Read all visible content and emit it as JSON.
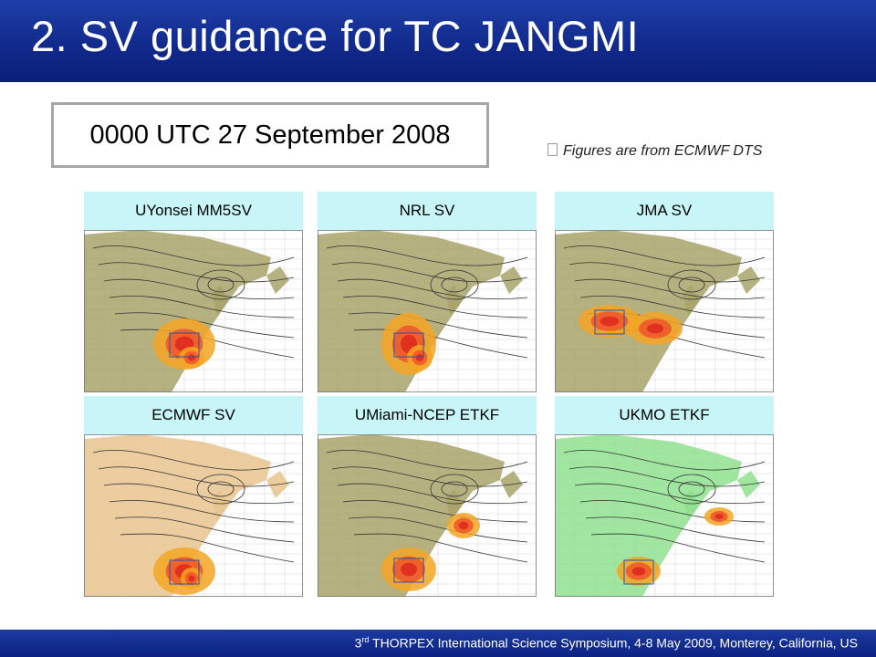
{
  "slide": {
    "title": "2. SV guidance for TC JANGMI",
    "date_box": "0000 UTC 27 September 2008",
    "note": "Figures are from ECMWF DTS"
  },
  "panels": [
    {
      "label": "UYonsei MM5SV",
      "land_color": "#a9a36a"
    },
    {
      "label": "NRL SV",
      "land_color": "#a9a36a"
    },
    {
      "label": "JMA SV",
      "land_color": "#a9a36a"
    },
    {
      "label": "ECMWF SV",
      "land_color": "#e8c48f"
    },
    {
      "label": "UMiami-NCEP ETKF",
      "land_color": "#a9a36a"
    },
    {
      "label": "UKMO ETKF",
      "land_color": "#8fe08f"
    }
  ],
  "footer": {
    "ordinal_number": "3",
    "ordinal_suffix": "rd",
    "text": " THORPEX International Science Symposium, 4-8 May 2009, Monterey, California, US"
  },
  "colors": {
    "header_blue": "#10288a",
    "label_cyan": "#c8f5f7",
    "hotspot_red": "#e03020"
  }
}
